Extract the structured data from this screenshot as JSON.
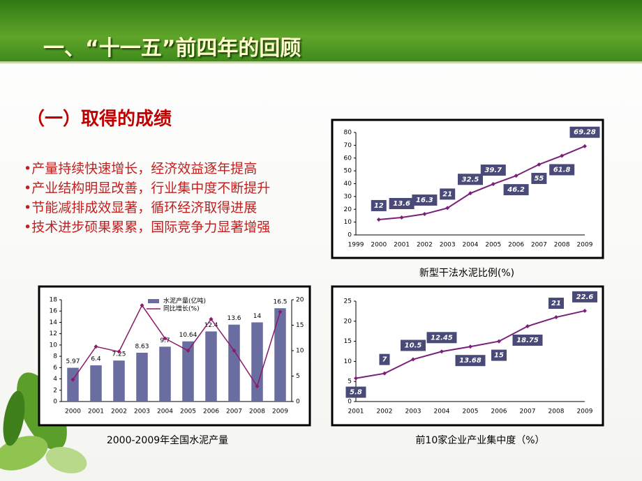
{
  "slide": {
    "title": "一、“十一五”前四年的回顾",
    "subtitle": "（一）取得的成绩",
    "bullets": [
      "•产量持续快速增长，经济效益逐年提高",
      "•产业结构明显改善，行业集中度不断提升",
      "•节能减排成效显著，循环经济取得进展",
      "•技术进步硕果累累，国际竞争力显著增强"
    ]
  },
  "chart_data": [
    {
      "type": "line",
      "caption": "新型干法水泥比例(%)",
      "categories": [
        "1999",
        "2000",
        "2001",
        "2002",
        "2003",
        "2004",
        "2005",
        "2006",
        "2007",
        "2008",
        "2009"
      ],
      "values": [
        null,
        12,
        13.6,
        16.3,
        21,
        32.5,
        39.7,
        46.2,
        55,
        61.8,
        69.28
      ],
      "color": "#7a1f7a",
      "ylim": [
        0,
        80
      ],
      "yticks": [
        0,
        10,
        20,
        30,
        40,
        50,
        60,
        70,
        80
      ]
    },
    {
      "type": "bar",
      "caption": "2000-2009年全国水泥产量",
      "categories": [
        "2000",
        "2001",
        "2002",
        "2003",
        "2004",
        "2005",
        "2006",
        "2007",
        "2008",
        "2009"
      ],
      "series": [
        {
          "name": "水泥产量(亿吨)",
          "color": "#6a6d9f",
          "values": [
            5.97,
            6.4,
            7.25,
            8.63,
            9.7,
            10.64,
            12.4,
            13.6,
            14,
            16.5
          ],
          "value_labels": [
            "5.97",
            "6.4",
            "7.25",
            "8.63",
            "9.7",
            "10.64",
            "12.4",
            "13.6",
            "14",
            "16.5"
          ]
        },
        {
          "name": "同比增长(%)",
          "color": "#8b1a6b",
          "axis": "y2",
          "values": [
            4.3,
            10.8,
            9.8,
            18.9,
            12.4,
            10,
            16.2,
            10,
            3,
            17.6
          ]
        }
      ],
      "ylim": [
        0,
        18
      ],
      "yticks": [
        0,
        2,
        4,
        6,
        8,
        10,
        12,
        14,
        16,
        18
      ],
      "y2lim": [
        0,
        20
      ],
      "y2ticks": [
        0,
        5,
        10,
        15,
        20
      ]
    },
    {
      "type": "line",
      "caption": "前10家企业产业集中度（%）",
      "categories": [
        "2001",
        "2002",
        "2003",
        "2004",
        "2005",
        "2006",
        "2007",
        "2008",
        "2009"
      ],
      "values": [
        5.8,
        7,
        10.5,
        12.45,
        13.68,
        15,
        18.75,
        21,
        22.6
      ],
      "color": "#7a1f7a",
      "ylim": [
        0,
        25
      ],
      "yticks": [
        0,
        5,
        10,
        15,
        20,
        25
      ]
    }
  ]
}
